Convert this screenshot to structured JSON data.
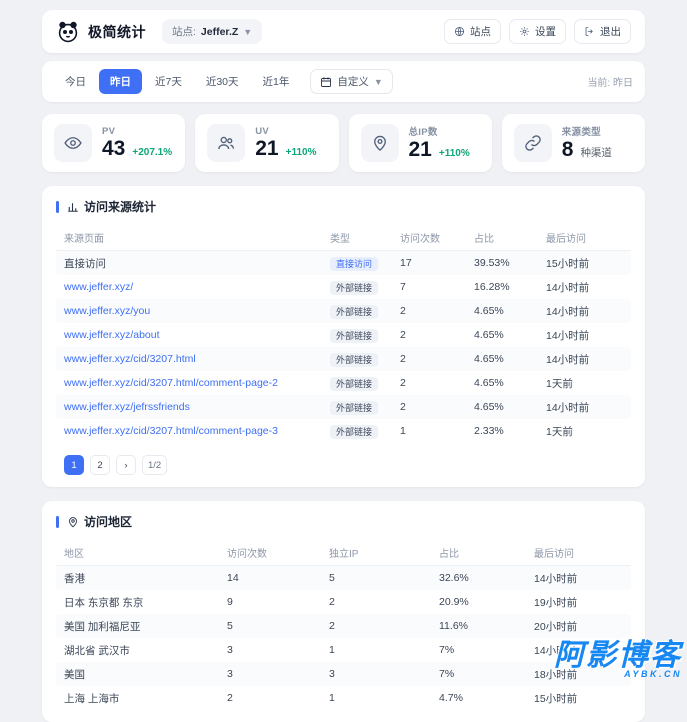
{
  "colors": {
    "accent": "#3e6ff4",
    "positive": "#0ca678",
    "watermark_blue": "#1787f2"
  },
  "header": {
    "logo_icon": "logo",
    "title": "极简统计",
    "site_label": "站点:",
    "site_value": "Jeffer.Z",
    "buttons": [
      {
        "name": "site-button",
        "icon_name": "globe-icon",
        "icon": "globe",
        "label": "站点"
      },
      {
        "name": "settings-button",
        "icon_name": "gear-icon",
        "icon": "gear",
        "label": "设置"
      },
      {
        "name": "logout-button",
        "icon_name": "logout-icon",
        "icon": "logout",
        "label": "退出"
      }
    ]
  },
  "tabs": {
    "items": [
      {
        "name": "tab-today",
        "label": "今日",
        "state": "normal"
      },
      {
        "name": "tab-yesterday",
        "label": "昨日",
        "state": "active"
      },
      {
        "name": "tab-last-7-days",
        "label": "近7天",
        "state": "normal"
      },
      {
        "name": "tab-last-30-days",
        "label": "近30天",
        "state": "normal"
      },
      {
        "name": "tab-last-1-year",
        "label": "近1年",
        "state": "normal"
      }
    ],
    "custom_label": "自定义",
    "current_label": "当前: 昨日"
  },
  "stats": [
    {
      "name": "stat-pv",
      "icon_name": "eye-icon",
      "icon": "eye",
      "label": "PV",
      "value": "43",
      "delta": "+207.1%",
      "delta_style": "up"
    },
    {
      "name": "stat-uv",
      "icon_name": "users-icon",
      "icon": "users",
      "label": "UV",
      "value": "21",
      "delta": "+110%",
      "delta_style": "up"
    },
    {
      "name": "stat-total-ip",
      "icon_name": "map-pin-icon",
      "icon": "pin",
      "label": "总IP数",
      "value": "21",
      "delta": "+110%",
      "delta_style": "up"
    },
    {
      "name": "stat-source-types",
      "icon_name": "link-icon",
      "icon": "link",
      "label": "来源类型",
      "value": "8",
      "delta": "种渠道",
      "delta_style": "muted"
    }
  ],
  "sources": {
    "icon": "chart",
    "title": "访问来源统计",
    "columns": [
      "来源页面",
      "类型",
      "访问次数",
      "占比",
      "最后访问"
    ],
    "rows": [
      {
        "page": "直接访问",
        "page_style": "plain",
        "type": "直接访问",
        "type_style": "direct",
        "visits": "17",
        "ratio": "39.53%",
        "last": "15小时前"
      },
      {
        "page": "www.jeffer.xyz/",
        "page_style": "link",
        "type": "外部链接",
        "type_style": "external",
        "visits": "7",
        "ratio": "16.28%",
        "last": "14小时前"
      },
      {
        "page": "www.jeffer.xyz/you",
        "page_style": "link",
        "type": "外部链接",
        "type_style": "external",
        "visits": "2",
        "ratio": "4.65%",
        "last": "14小时前"
      },
      {
        "page": "www.jeffer.xyz/about",
        "page_style": "link",
        "type": "外部链接",
        "type_style": "external",
        "visits": "2",
        "ratio": "4.65%",
        "last": "14小时前"
      },
      {
        "page": "www.jeffer.xyz/cid/3207.html",
        "page_style": "link",
        "type": "外部链接",
        "type_style": "external",
        "visits": "2",
        "ratio": "4.65%",
        "last": "14小时前"
      },
      {
        "page": "www.jeffer.xyz/cid/3207.html/comment-page-2",
        "page_style": "link",
        "type": "外部链接",
        "type_style": "external",
        "visits": "2",
        "ratio": "4.65%",
        "last": "1天前"
      },
      {
        "page": "www.jeffer.xyz/jefrssfriends",
        "page_style": "link",
        "type": "外部链接",
        "type_style": "external",
        "visits": "2",
        "ratio": "4.65%",
        "last": "14小时前"
      },
      {
        "page": "www.jeffer.xyz/cid/3207.html/comment-page-3",
        "page_style": "link",
        "type": "外部链接",
        "type_style": "external",
        "visits": "1",
        "ratio": "2.33%",
        "last": "1天前"
      }
    ],
    "pagination": {
      "pages": [
        {
          "name": "page-1-button",
          "label": "1",
          "state": "active"
        },
        {
          "name": "page-2-button",
          "label": "2",
          "state": "normal"
        }
      ],
      "next": "›",
      "indicator": "1/2"
    }
  },
  "regions": {
    "icon": "pin",
    "title": "访问地区",
    "columns": [
      "地区",
      "访问次数",
      "独立IP",
      "占比",
      "最后访问"
    ],
    "rows": [
      {
        "region": "香港",
        "visits": "14",
        "ips": "5",
        "ratio": "32.6%",
        "last": "14小时前"
      },
      {
        "region": "日本 东京都 东京",
        "visits": "9",
        "ips": "2",
        "ratio": "20.9%",
        "last": "19小时前"
      },
      {
        "region": "美国 加利福尼亚",
        "visits": "5",
        "ips": "2",
        "ratio": "11.6%",
        "last": "20小时前"
      },
      {
        "region": "湖北省 武汉市",
        "visits": "3",
        "ips": "1",
        "ratio": "7%",
        "last": "14小时前"
      },
      {
        "region": "美国",
        "visits": "3",
        "ips": "3",
        "ratio": "7%",
        "last": "18小时前"
      },
      {
        "region": "上海 上海市",
        "visits": "2",
        "ips": "1",
        "ratio": "4.7%",
        "last": "15小时前"
      }
    ]
  },
  "watermark": {
    "title": "阿影博客",
    "subtitle": "AYBK.CN"
  }
}
